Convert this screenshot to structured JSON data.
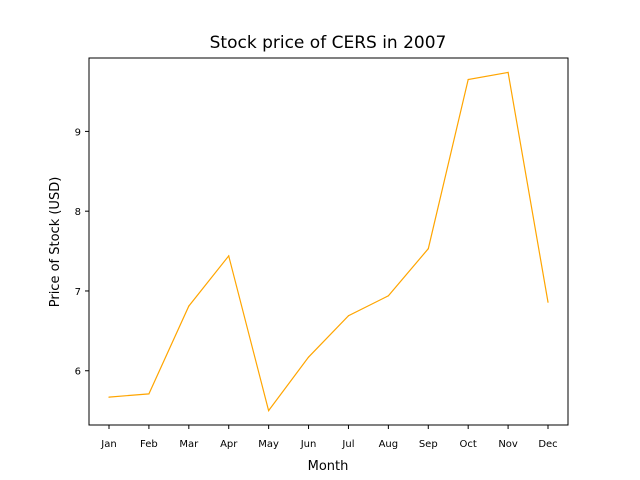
{
  "chart_data": {
    "type": "line",
    "title": "Stock price of CERS in 2007",
    "xlabel": "Month",
    "ylabel": "Price of Stock (USD)",
    "categories": [
      "Jan",
      "Feb",
      "Mar",
      "Apr",
      "May",
      "Jun",
      "Jul",
      "Aug",
      "Sep",
      "Oct",
      "Nov",
      "Dec"
    ],
    "series": [
      {
        "values": [
          5.67,
          5.71,
          6.81,
          7.44,
          5.5,
          6.17,
          6.69,
          6.94,
          7.53,
          9.65,
          9.74,
          6.86
        ],
        "color": "#ffa500"
      }
    ],
    "yticks": [
      6,
      7,
      8,
      9
    ],
    "ylim": [
      5.32,
      9.92
    ],
    "grid": false,
    "legend": "none"
  }
}
